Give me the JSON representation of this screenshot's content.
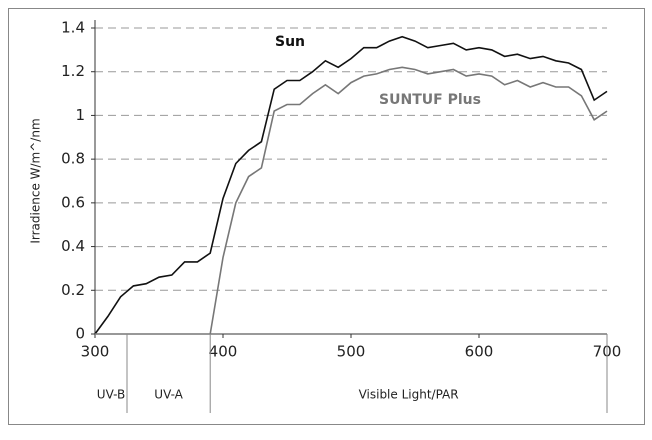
{
  "chart_data": {
    "type": "line",
    "y_label": "Irradience W/m^/nm",
    "x": [
      300,
      310,
      320,
      330,
      340,
      350,
      360,
      370,
      380,
      390,
      400,
      410,
      420,
      430,
      440,
      450,
      460,
      470,
      480,
      490,
      500,
      510,
      520,
      530,
      540,
      550,
      560,
      570,
      580,
      590,
      600,
      610,
      620,
      630,
      640,
      650,
      660,
      670,
      680,
      690,
      700
    ],
    "series": [
      {
        "name": "Sun",
        "color": "#111111",
        "values": [
          0,
          0.08,
          0.17,
          0.22,
          0.23,
          0.26,
          0.27,
          0.33,
          0.33,
          0.37,
          0.62,
          0.78,
          0.84,
          0.88,
          1.12,
          1.16,
          1.16,
          1.2,
          1.25,
          1.22,
          1.26,
          1.31,
          1.31,
          1.34,
          1.36,
          1.34,
          1.31,
          1.32,
          1.33,
          1.3,
          1.31,
          1.3,
          1.27,
          1.28,
          1.26,
          1.27,
          1.25,
          1.24,
          1.21,
          1.07,
          1.11
        ]
      },
      {
        "name": "SUNTUF Plus",
        "color": "#777777",
        "values": [
          0,
          0,
          0,
          0,
          0,
          0,
          0,
          0,
          0,
          0,
          0.35,
          0.6,
          0.72,
          0.76,
          1.02,
          1.05,
          1.05,
          1.1,
          1.14,
          1.1,
          1.15,
          1.18,
          1.19,
          1.21,
          1.22,
          1.21,
          1.19,
          1.2,
          1.21,
          1.18,
          1.19,
          1.18,
          1.14,
          1.16,
          1.13,
          1.15,
          1.13,
          1.13,
          1.09,
          0.98,
          1.02
        ]
      }
    ],
    "xlim": [
      300,
      700
    ],
    "xticks": [
      300,
      400,
      500,
      600,
      700
    ],
    "ylim": [
      0,
      1.4
    ],
    "yticks": [
      0,
      0.2,
      0.4,
      0.6,
      0.8,
      1,
      1.2,
      1.4
    ],
    "grid": true,
    "regions": [
      {
        "label": "UV-B",
        "start": 300,
        "end": 325
      },
      {
        "label": "UV-A",
        "start": 325,
        "end": 390
      },
      {
        "label": "Visible Light/PAR",
        "start": 390,
        "end": 700
      }
    ]
  }
}
